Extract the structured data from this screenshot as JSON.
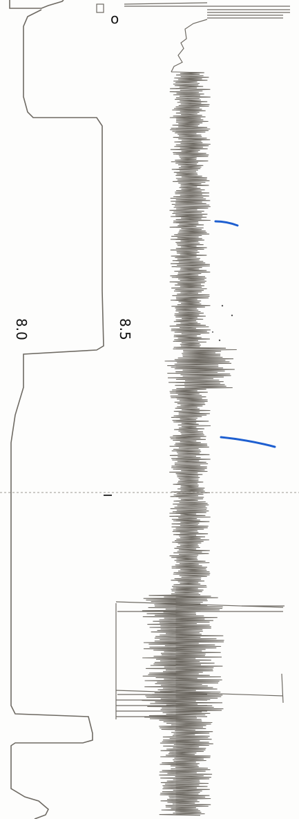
{
  "labels": {
    "channel_a": "8.0",
    "channel_b": "8.5",
    "marker": "o"
  },
  "colors": {
    "paper": "#fdfdfc",
    "trace": "#6e6a63",
    "ink": "#111111",
    "pen_mark": "#1e5fd0"
  }
}
